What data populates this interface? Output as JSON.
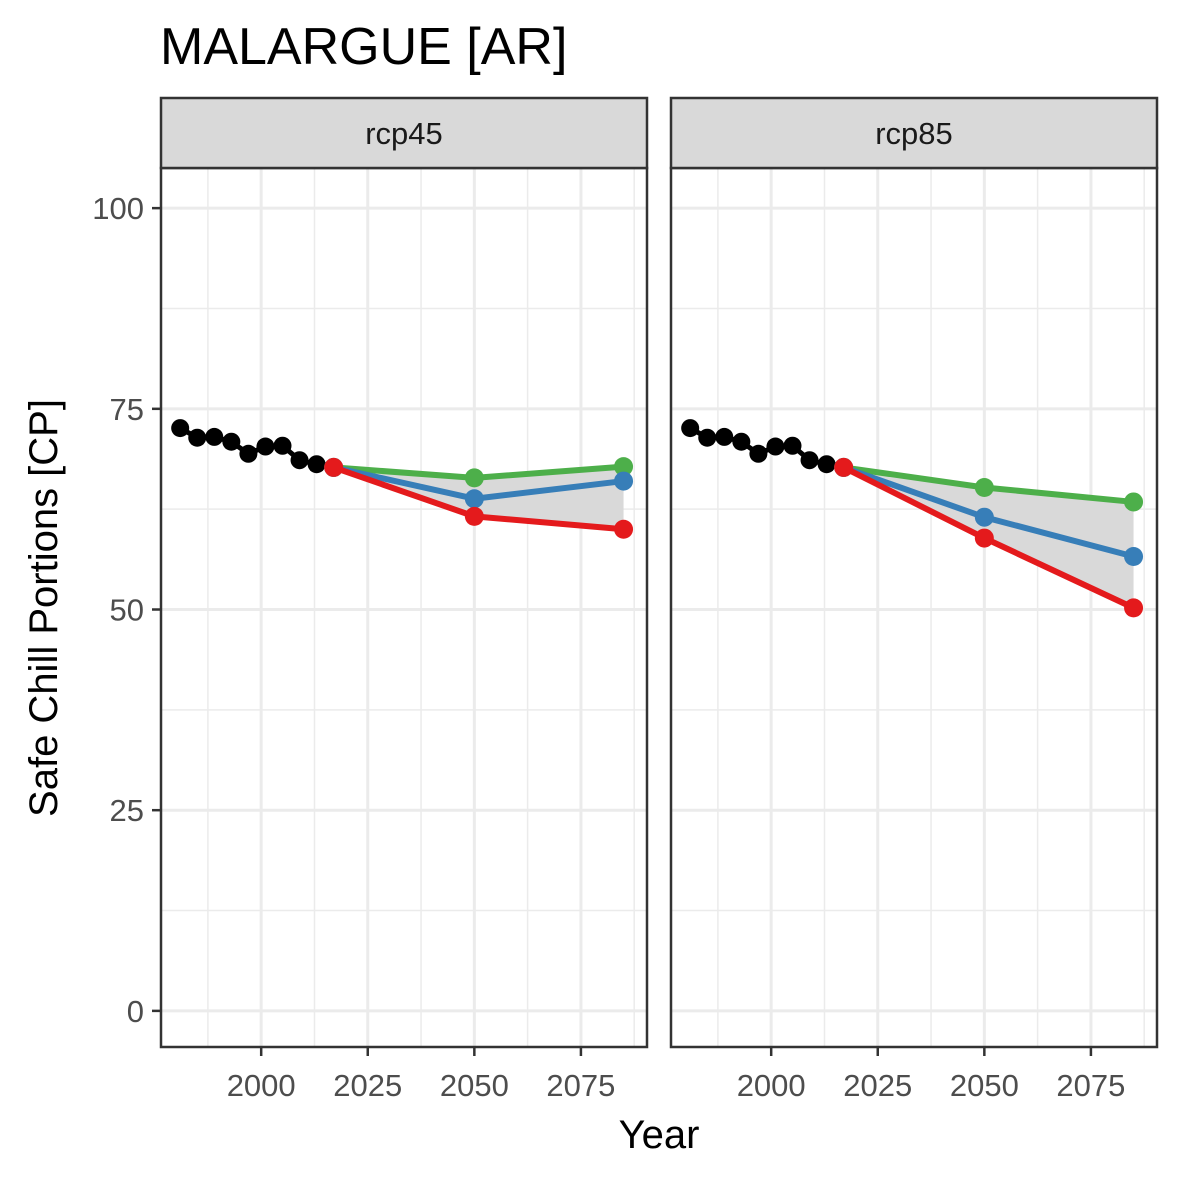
{
  "chart_data": {
    "type": "line",
    "title": "MALARGUE [AR]",
    "xlabel": "Year",
    "ylabel": "Safe Chill Portions [CP]",
    "xlim": [
      1976.5,
      2090.5
    ],
    "ylim": [
      -4.5,
      105
    ],
    "x_ticks": [
      2000,
      2025,
      2050,
      2075
    ],
    "y_ticks": [
      0,
      25,
      50,
      75,
      100
    ],
    "grid": true,
    "legend": "none",
    "colors": {
      "historic": "#000000",
      "low": "#e41a1c",
      "mid": "#377eb8",
      "high": "#4daf4a",
      "ribbon": "#d9d9d9"
    },
    "historic": {
      "x": [
        1981,
        1985,
        1989,
        1993,
        1997,
        2001,
        2005,
        2009,
        2013
      ],
      "y": [
        72.6,
        71.4,
        71.5,
        70.9,
        69.4,
        70.3,
        70.4,
        68.6,
        68.1
      ]
    },
    "panels": [
      {
        "label": "rcp45",
        "x": [
          2017,
          2050,
          2085
        ],
        "series": [
          {
            "key": "high",
            "values": [
              67.7,
              66.4,
              67.8
            ]
          },
          {
            "key": "mid",
            "values": [
              67.7,
              63.8,
              66.0
            ]
          },
          {
            "key": "low",
            "values": [
              67.7,
              61.6,
              60.0
            ]
          }
        ]
      },
      {
        "label": "rcp85",
        "x": [
          2017,
          2050,
          2085
        ],
        "series": [
          {
            "key": "high",
            "values": [
              67.7,
              65.2,
              63.4
            ]
          },
          {
            "key": "mid",
            "values": [
              67.7,
              61.5,
              56.6
            ]
          },
          {
            "key": "low",
            "values": [
              67.7,
              58.9,
              50.2
            ]
          }
        ]
      }
    ]
  }
}
